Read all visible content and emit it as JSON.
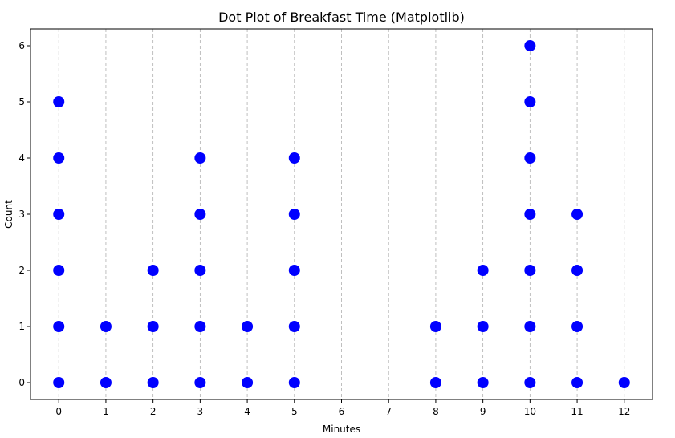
{
  "chart_data": {
    "type": "scatter",
    "title": "Dot Plot of Breakfast Time (Matplotlib)",
    "xlabel": "Minutes",
    "ylabel": "Count",
    "xlim": [
      -0.6,
      12.6
    ],
    "ylim": [
      -0.3,
      6.3
    ],
    "x_ticks": [
      0,
      1,
      2,
      3,
      4,
      5,
      6,
      7,
      8,
      9,
      10,
      11,
      12
    ],
    "y_ticks": [
      0,
      1,
      2,
      3,
      4,
      5,
      6
    ],
    "grid": "x-only, dashed",
    "color": "#0000ff",
    "stacks": [
      {
        "x": 0,
        "count": 6
      },
      {
        "x": 1,
        "count": 2
      },
      {
        "x": 2,
        "count": 3
      },
      {
        "x": 3,
        "count": 5
      },
      {
        "x": 4,
        "count": 2
      },
      {
        "x": 5,
        "count": 5
      },
      {
        "x": 8,
        "count": 2
      },
      {
        "x": 9,
        "count": 3
      },
      {
        "x": 10,
        "count": 7
      },
      {
        "x": 11,
        "count": 4
      },
      {
        "x": 12,
        "count": 1
      }
    ]
  }
}
